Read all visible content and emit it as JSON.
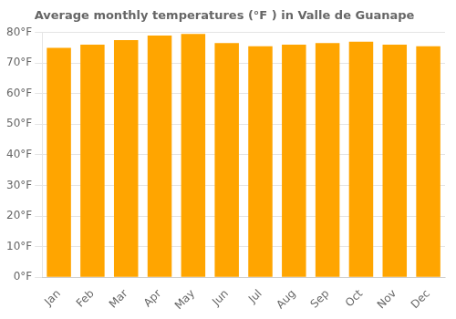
{
  "chart_data": {
    "type": "bar",
    "title": "Average monthly temperatures (°F ) in Valle de Guanape",
    "categories": [
      "Jan",
      "Feb",
      "Mar",
      "Apr",
      "May",
      "Jun",
      "Jul",
      "Aug",
      "Sep",
      "Oct",
      "Nov",
      "Dec"
    ],
    "values": [
      75.0,
      76.0,
      77.5,
      79.0,
      79.5,
      76.5,
      75.5,
      76.0,
      76.5,
      77.0,
      76.0,
      75.5
    ],
    "color": "#FFA500",
    "ylim": [
      0,
      80
    ],
    "yticks": [
      {
        "value": 0,
        "label": "0°F"
      },
      {
        "value": 10,
        "label": "10°F"
      },
      {
        "value": 20,
        "label": "20°F"
      },
      {
        "value": 30,
        "label": "30°F"
      },
      {
        "value": 40,
        "label": "40°F"
      },
      {
        "value": 50,
        "label": "50°F"
      },
      {
        "value": 60,
        "label": "60°F"
      },
      {
        "value": 70,
        "label": "70°F"
      },
      {
        "value": 80,
        "label": "80°F"
      }
    ],
    "grid": true
  }
}
